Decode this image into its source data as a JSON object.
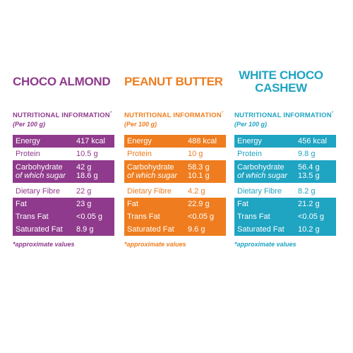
{
  "nutri_label": "NUTRITIONAL INFORMATION",
  "asterisk": "*",
  "per_label": "(Per 100 g)",
  "approx_label": "*approximate values",
  "panels": [
    {
      "title_1": "CHOCO ALMOND",
      "title_2": "",
      "color": "#8f3a8c",
      "energy_label": "Energy",
      "energy": "417 kcal",
      "protein_label": "Protein",
      "protein": "10.5 g",
      "carb_label": "Carbohydrate",
      "sugar_label": "of which sugar",
      "carb": "42 g",
      "sugar": "18.6 g",
      "fibre_label": "Dietary Fibre",
      "fibre": "22 g",
      "fat_label": "Fat",
      "fat": "23 g",
      "trans_label": "Trans Fat",
      "trans": "<0.05 g",
      "sat_label": "Saturated Fat",
      "sat": "8.9 g"
    },
    {
      "title_1": "PEANUT BUTTER",
      "title_2": "",
      "color": "#ef7d1f",
      "energy_label": "Energy",
      "energy": "488 kcal",
      "protein_label": "Protein",
      "protein": "10 g",
      "carb_label": "Carbohydrate",
      "sugar_label": "of which sugar",
      "carb": "58.3 g",
      "sugar": "10.1 g",
      "fibre_label": "Dietary Fibre",
      "fibre": "4.2 g",
      "fat_label": "Fat",
      "fat": "22.9 g",
      "trans_label": "Trans Fat",
      "trans": "<0.05 g",
      "sat_label": "Saturated Fat",
      "sat": "9.6 g"
    },
    {
      "title_1": "WHITE CHOCO",
      "title_2": "CASHEW",
      "color": "#1fa4c2",
      "energy_label": "Energy",
      "energy": "456 kcal",
      "protein_label": "Protein",
      "protein": "9.8 g",
      "carb_label": "Carbohydrate",
      "sugar_label": "of which sugar",
      "carb": "56.4 g",
      "sugar": "13.5 g",
      "fibre_label": "Dietary Fibre",
      "fibre": "8.2 g",
      "fat_label": "Fat",
      "fat": "21.2 g",
      "trans_label": "Trans Fat",
      "trans": "<0.05 g",
      "sat_label": "Saturated Fat",
      "sat": "10.2 g"
    }
  ]
}
